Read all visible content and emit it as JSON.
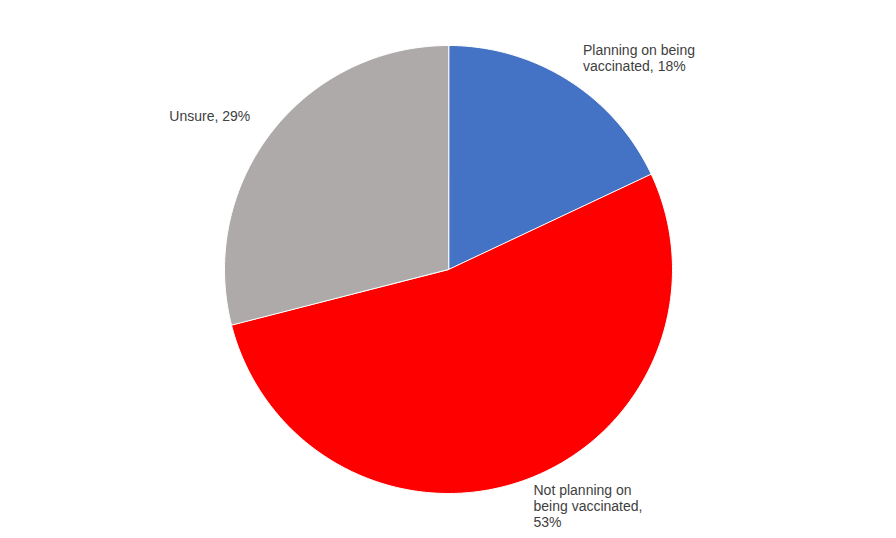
{
  "chart_data": {
    "type": "pie",
    "categories": [
      "Planning on being\nvaccinated, 18%",
      "Not planning on\nbeing vaccinated,\n53%",
      "Unsure, 29%"
    ],
    "values": [
      18,
      53,
      29
    ],
    "colors": [
      "#4472C4",
      "#FF0000",
      "#AEAAAA"
    ]
  }
}
